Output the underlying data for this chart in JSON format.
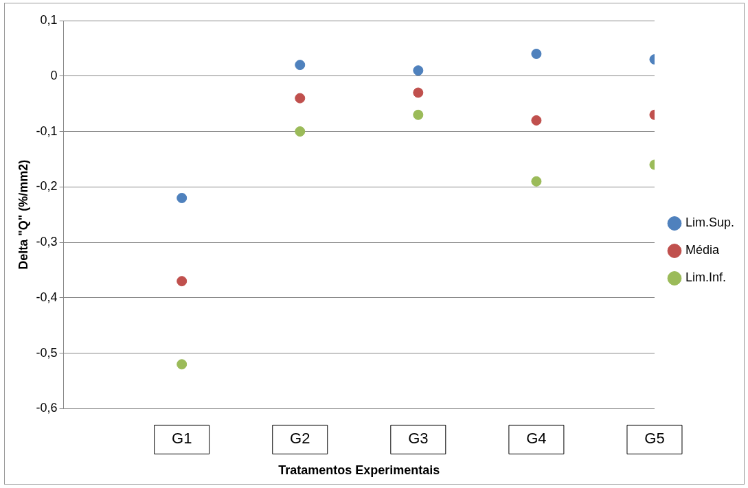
{
  "chart_data": {
    "type": "scatter",
    "xlabel": "Tratamentos Experimentais",
    "ylabel": "Delta \"Q\" (%/mm2)",
    "categories": [
      "G1",
      "G2",
      "G3",
      "G4",
      "G5"
    ],
    "series": [
      {
        "name": "Lim.Sup.",
        "color": "#4f81bd",
        "values": [
          -0.22,
          0.02,
          0.01,
          0.04,
          0.03
        ]
      },
      {
        "name": "Média",
        "color": "#c0504d",
        "values": [
          -0.37,
          -0.04,
          -0.03,
          -0.08,
          -0.07
        ]
      },
      {
        "name": "Lim.Inf.",
        "color": "#9bbb59",
        "values": [
          -0.52,
          -0.1,
          -0.07,
          -0.19,
          -0.16
        ]
      }
    ],
    "ylim": [
      -0.6,
      0.1
    ],
    "yticks": [
      {
        "value": -0.6,
        "label": "-0,6"
      },
      {
        "value": -0.5,
        "label": "-0,5"
      },
      {
        "value": -0.4,
        "label": "-0,4"
      },
      {
        "value": -0.3,
        "label": "-0,3"
      },
      {
        "value": -0.2,
        "label": "-0,2"
      },
      {
        "value": -0.1,
        "label": "-0,1"
      },
      {
        "value": 0,
        "label": "0"
      },
      {
        "value": 0.1,
        "label": "0,1"
      }
    ],
    "grid": "y",
    "legend": "right",
    "marker": "circle"
  }
}
